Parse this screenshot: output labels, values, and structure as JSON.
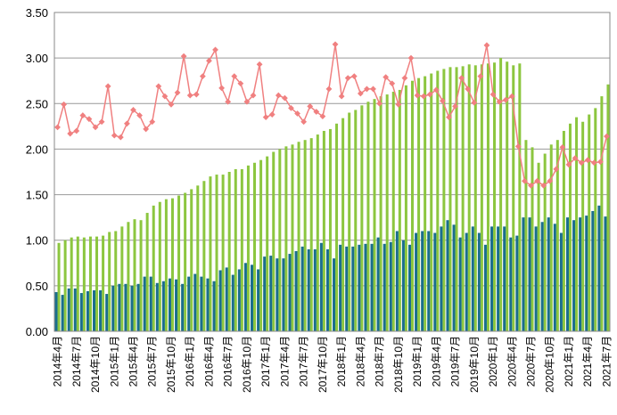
{
  "chart_data": {
    "type": "bar",
    "title": "",
    "xlabel": "",
    "ylabel": "",
    "ylim": [
      0,
      3.5
    ],
    "y_ticks": [
      "0.00",
      "0.50",
      "1.00",
      "1.50",
      "2.00",
      "2.50",
      "3.00",
      "3.50"
    ],
    "grid": "horizontal",
    "legend": "none",
    "x_tick_labels": [
      "2014年4月",
      "2014年7月",
      "2014年10月",
      "2015年1月",
      "2015年4月",
      "2015年7月",
      "2015年10月",
      "2016年1月",
      "2016年4月",
      "2016年7月",
      "2016年10月",
      "2017年1月",
      "2017年4月",
      "2017年7月",
      "2017年10月",
      "2018年1月",
      "2018年4月",
      "2018年7月",
      "2018年10月",
      "2019年1月",
      "2019年4月",
      "2019年7月",
      "2019年10月",
      "2020年1月",
      "2020年4月",
      "2020年7月",
      "2020年10月",
      "2021年1月",
      "2021年4月",
      "2021年7月"
    ],
    "x_tick_every": 3,
    "categories": [
      "2014-04",
      "2014-05",
      "2014-06",
      "2014-07",
      "2014-08",
      "2014-09",
      "2014-10",
      "2014-11",
      "2014-12",
      "2015-01",
      "2015-02",
      "2015-03",
      "2015-04",
      "2015-05",
      "2015-06",
      "2015-07",
      "2015-08",
      "2015-09",
      "2015-10",
      "2015-11",
      "2015-12",
      "2016-01",
      "2016-02",
      "2016-03",
      "2016-04",
      "2016-05",
      "2016-06",
      "2016-07",
      "2016-08",
      "2016-09",
      "2016-10",
      "2016-11",
      "2016-12",
      "2017-01",
      "2017-02",
      "2017-03",
      "2017-04",
      "2017-05",
      "2017-06",
      "2017-07",
      "2017-08",
      "2017-09",
      "2017-10",
      "2017-11",
      "2017-12",
      "2018-01",
      "2018-02",
      "2018-03",
      "2018-04",
      "2018-05",
      "2018-06",
      "2018-07",
      "2018-08",
      "2018-09",
      "2018-10",
      "2018-11",
      "2018-12",
      "2019-01",
      "2019-02",
      "2019-03",
      "2019-04",
      "2019-05",
      "2019-06",
      "2019-07",
      "2019-08",
      "2019-09",
      "2019-10",
      "2019-11",
      "2019-12",
      "2020-01",
      "2020-02",
      "2020-03",
      "2020-04",
      "2020-05",
      "2020-06",
      "2020-07",
      "2020-08",
      "2020-09",
      "2020-10",
      "2020-11",
      "2020-12",
      "2021-01",
      "2021-02",
      "2021-03",
      "2021-04",
      "2021-05",
      "2021-06",
      "2021-07"
    ],
    "series": [
      {
        "kind": "bar",
        "color": "#8cc63f",
        "values": [
          0.97,
          1.0,
          1.03,
          1.04,
          1.03,
          1.04,
          1.04,
          1.05,
          1.09,
          1.1,
          1.15,
          1.2,
          1.23,
          1.22,
          1.3,
          1.38,
          1.42,
          1.45,
          1.46,
          1.49,
          1.52,
          1.56,
          1.6,
          1.65,
          1.7,
          1.72,
          1.72,
          1.75,
          1.78,
          1.78,
          1.82,
          1.85,
          1.88,
          1.92,
          1.97,
          2.0,
          2.03,
          2.05,
          2.08,
          2.1,
          2.12,
          2.16,
          2.2,
          2.22,
          2.28,
          2.34,
          2.4,
          2.43,
          2.48,
          2.52,
          2.55,
          2.58,
          2.6,
          2.63,
          2.65,
          2.7,
          2.75,
          2.78,
          2.8,
          2.83,
          2.86,
          2.88,
          2.9,
          2.9,
          2.91,
          2.93,
          2.92,
          2.93,
          2.94,
          2.95,
          3.0,
          2.96,
          2.92,
          2.94,
          2.1,
          2.02,
          1.85,
          1.95,
          2.05,
          2.1,
          2.2,
          2.28,
          2.35,
          2.3,
          2.38,
          2.45,
          2.58,
          2.71
        ]
      },
      {
        "kind": "bar",
        "color": "#1a6e8c",
        "values": [
          0.43,
          0.4,
          0.47,
          0.47,
          0.42,
          0.44,
          0.45,
          0.45,
          0.41,
          0.5,
          0.52,
          0.52,
          0.5,
          0.52,
          0.6,
          0.6,
          0.53,
          0.55,
          0.58,
          0.57,
          0.52,
          0.6,
          0.63,
          0.6,
          0.58,
          0.55,
          0.67,
          0.7,
          0.62,
          0.68,
          0.75,
          0.73,
          0.68,
          0.82,
          0.83,
          0.8,
          0.8,
          0.85,
          0.88,
          0.93,
          0.9,
          0.9,
          0.97,
          0.9,
          0.8,
          0.95,
          0.93,
          0.93,
          0.95,
          0.96,
          0.96,
          1.03,
          0.96,
          0.98,
          1.1,
          1.0,
          0.95,
          1.08,
          1.1,
          1.1,
          1.08,
          1.15,
          1.22,
          1.17,
          1.03,
          1.08,
          1.15,
          1.08,
          0.95,
          1.15,
          1.15,
          1.15,
          1.03,
          1.05,
          1.25,
          1.25,
          1.15,
          1.2,
          1.25,
          1.18,
          1.08,
          1.25,
          1.22,
          1.25,
          1.27,
          1.32,
          1.38,
          1.26
        ]
      },
      {
        "kind": "line",
        "color": "#f08080",
        "values": [
          2.24,
          2.49,
          2.17,
          2.2,
          2.37,
          2.33,
          2.24,
          2.3,
          2.69,
          2.15,
          2.13,
          2.28,
          2.43,
          2.37,
          2.22,
          2.3,
          2.69,
          2.58,
          2.49,
          2.62,
          3.02,
          2.59,
          2.6,
          2.8,
          2.97,
          3.09,
          2.67,
          2.52,
          2.8,
          2.72,
          2.52,
          2.59,
          2.93,
          2.35,
          2.38,
          2.59,
          2.56,
          2.45,
          2.39,
          2.3,
          2.47,
          2.41,
          2.36,
          2.66,
          3.15,
          2.58,
          2.78,
          2.8,
          2.61,
          2.66,
          2.66,
          2.5,
          2.79,
          2.72,
          2.49,
          2.78,
          3.0,
          2.59,
          2.58,
          2.6,
          2.65,
          2.53,
          2.35,
          2.47,
          2.78,
          2.66,
          2.51,
          2.8,
          3.14,
          2.6,
          2.52,
          2.54,
          2.58,
          2.03,
          1.65,
          1.6,
          1.65,
          1.6,
          1.65,
          1.78,
          2.02,
          1.83,
          1.9,
          1.85,
          1.88,
          1.85,
          1.86,
          2.14
        ]
      }
    ]
  }
}
